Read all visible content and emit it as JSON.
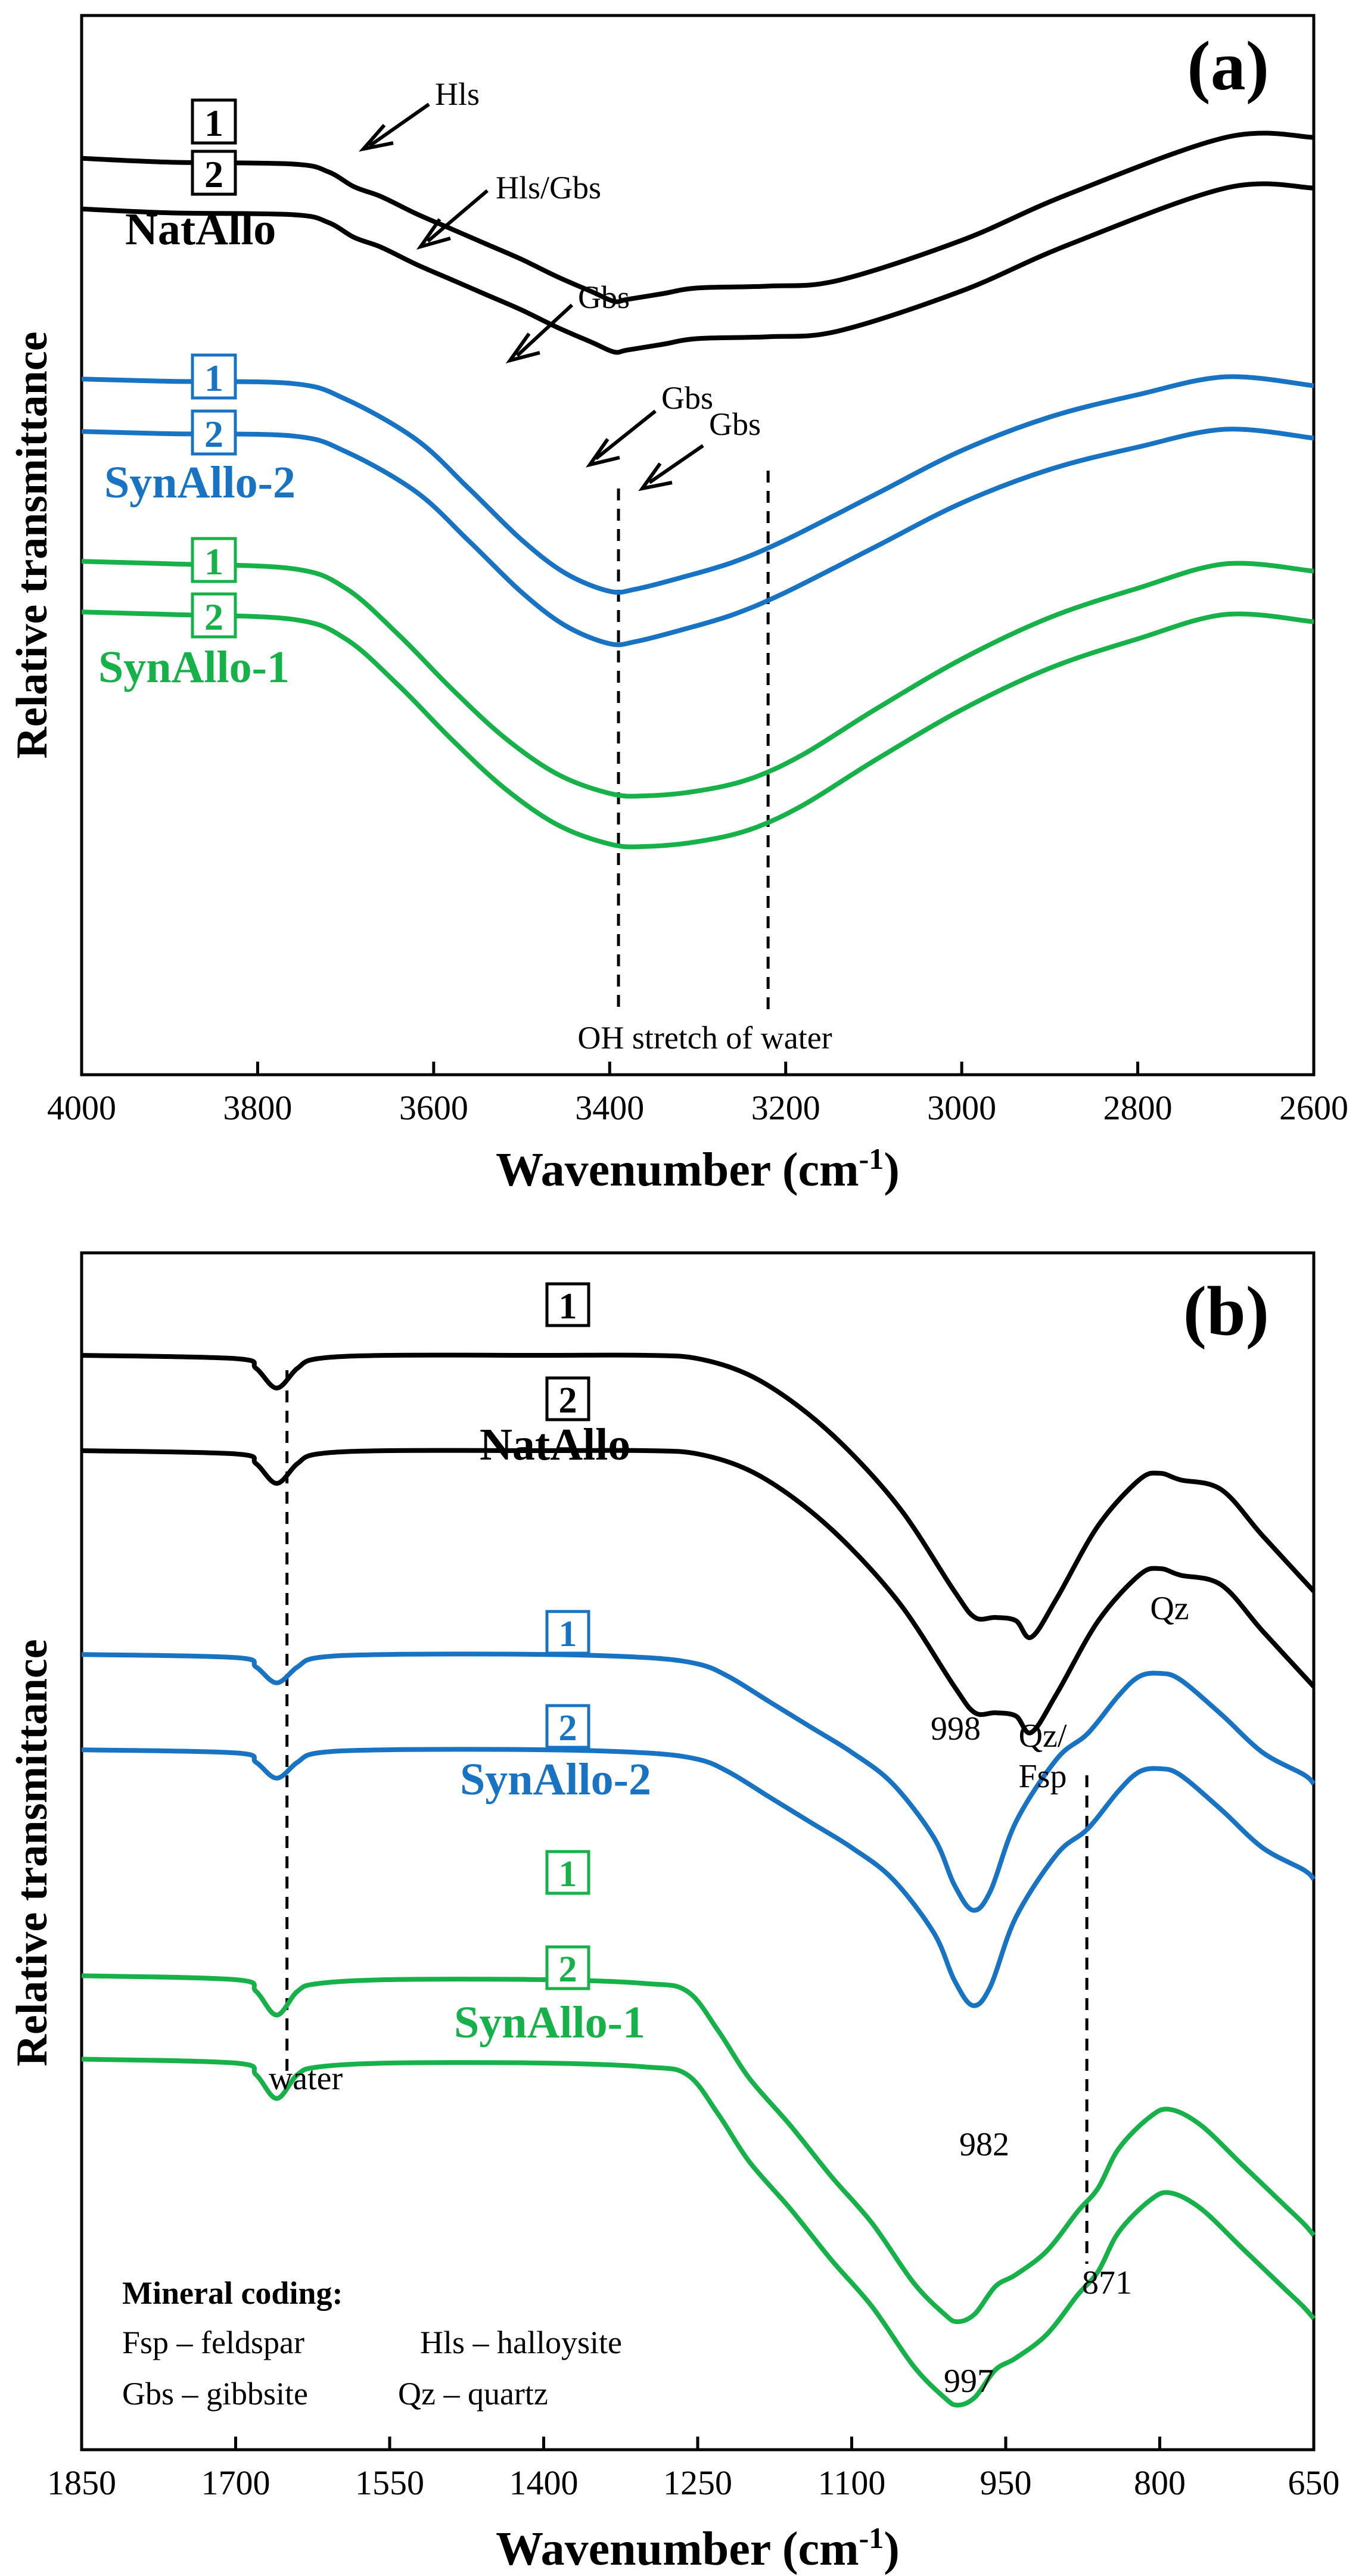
{
  "colors": {
    "black": "#000000",
    "blue": "#1874c2",
    "green": "#17b14a"
  },
  "chart_data": [
    {
      "type": "line",
      "panel_label": "(a)",
      "xlabel": "Wavenumber (cm",
      "xlabel_sup": "-1",
      "xlabel_close": ")",
      "ylabel": "Relative transmittance",
      "xlim": [
        4000,
        2600
      ],
      "x_reversed": true,
      "ticks": [
        "4000",
        "3800",
        "3600",
        "3400",
        "3200",
        "3000",
        "2800",
        "2600"
      ],
      "tick_values": [
        4000,
        3800,
        3600,
        3400,
        3200,
        3000,
        2800,
        2600
      ],
      "groups": [
        {
          "name": "NatAllo",
          "color": "black"
        },
        {
          "name": "SynAllo-2",
          "color": "blue"
        },
        {
          "name": "SynAllo-1",
          "color": "green"
        }
      ],
      "series": [
        {
          "name": "NatAllo 1",
          "badge": "1",
          "color": "black",
          "x": [
            4000,
            3900,
            3760,
            3720,
            3690,
            3660,
            3620,
            3580,
            3540,
            3500,
            3460,
            3420,
            3395,
            3380,
            3340,
            3300,
            3220,
            3140,
            3000,
            2880,
            2700,
            2600
          ],
          "y": [
            0.81,
            0.79,
            0.78,
            0.74,
            0.66,
            0.61,
            0.52,
            0.44,
            0.36,
            0.28,
            0.19,
            0.11,
            0.06,
            0.07,
            0.1,
            0.13,
            0.14,
            0.17,
            0.38,
            0.62,
            0.92,
            0.92
          ]
        },
        {
          "name": "NatAllo 2",
          "badge": "2",
          "color": "black",
          "x": [
            4000,
            3900,
            3760,
            3720,
            3690,
            3660,
            3620,
            3580,
            3540,
            3500,
            3460,
            3420,
            3395,
            3380,
            3340,
            3300,
            3220,
            3140,
            3000,
            2880,
            2700,
            2600
          ],
          "y": [
            0.81,
            0.79,
            0.78,
            0.74,
            0.66,
            0.61,
            0.52,
            0.44,
            0.36,
            0.28,
            0.19,
            0.11,
            0.06,
            0.07,
            0.1,
            0.13,
            0.14,
            0.17,
            0.38,
            0.62,
            0.92,
            0.92
          ]
        },
        {
          "name": "SynAllo-2 1",
          "badge": "1",
          "color": "blue",
          "x": [
            4000,
            3900,
            3760,
            3700,
            3620,
            3560,
            3500,
            3450,
            3400,
            3370,
            3320,
            3260,
            3200,
            3100,
            3000,
            2900,
            2800,
            2700,
            2600
          ],
          "y": [
            0.97,
            0.96,
            0.95,
            0.88,
            0.7,
            0.48,
            0.25,
            0.1,
            0.02,
            0.03,
            0.08,
            0.15,
            0.25,
            0.45,
            0.65,
            0.8,
            0.9,
            0.98,
            0.94
          ]
        },
        {
          "name": "SynAllo-2 2",
          "badge": "2",
          "color": "blue",
          "x": [
            4000,
            3900,
            3760,
            3700,
            3620,
            3560,
            3500,
            3450,
            3400,
            3370,
            3320,
            3260,
            3200,
            3100,
            3000,
            2900,
            2800,
            2700,
            2600
          ],
          "y": [
            0.97,
            0.96,
            0.95,
            0.88,
            0.7,
            0.48,
            0.25,
            0.1,
            0.02,
            0.03,
            0.08,
            0.15,
            0.25,
            0.45,
            0.65,
            0.8,
            0.9,
            0.98,
            0.94
          ]
        },
        {
          "name": "SynAllo-1 1",
          "badge": "1",
          "color": "green",
          "x": [
            4000,
            3900,
            3760,
            3700,
            3640,
            3580,
            3520,
            3460,
            3400,
            3360,
            3300,
            3240,
            3180,
            3100,
            3000,
            2900,
            2800,
            2700,
            2600
          ],
          "y": [
            0.97,
            0.96,
            0.94,
            0.86,
            0.67,
            0.45,
            0.25,
            0.1,
            0.02,
            0.01,
            0.03,
            0.08,
            0.18,
            0.36,
            0.57,
            0.74,
            0.86,
            0.96,
            0.93
          ]
        },
        {
          "name": "SynAllo-1 2",
          "badge": "2",
          "color": "green",
          "x": [
            4000,
            3900,
            3760,
            3700,
            3640,
            3580,
            3520,
            3460,
            3400,
            3360,
            3300,
            3240,
            3180,
            3100,
            3000,
            2900,
            2800,
            2700,
            2600
          ],
          "y": [
            0.97,
            0.96,
            0.94,
            0.86,
            0.67,
            0.45,
            0.25,
            0.1,
            0.02,
            0.01,
            0.03,
            0.08,
            0.18,
            0.36,
            0.57,
            0.74,
            0.86,
            0.96,
            0.93
          ]
        }
      ],
      "annotations": [
        {
          "text": "Hls",
          "at": 3690
        },
        {
          "text": "Hls/Gbs",
          "at": 3620
        },
        {
          "text": "Gbs",
          "at": 3520
        },
        {
          "text": "Gbs",
          "at": 3420
        },
        {
          "text": "Gbs",
          "at": 3395
        }
      ],
      "reference_lines": [
        3390,
        3220
      ],
      "reference_label": "OH stretch of water"
    },
    {
      "type": "line",
      "panel_label": "(b)",
      "xlabel": "Wavenumber (cm",
      "xlabel_sup": "-1",
      "xlabel_close": ")",
      "ylabel": "Relative transmittance",
      "xlim": [
        1850,
        650
      ],
      "x_reversed": true,
      "ticks": [
        "1850",
        "1700",
        "1550",
        "1400",
        "1250",
        "1100",
        "950",
        "800",
        "650"
      ],
      "tick_values": [
        1850,
        1700,
        1550,
        1400,
        1250,
        1100,
        950,
        800,
        650
      ],
      "groups": [
        {
          "name": "NatAllo",
          "color": "black"
        },
        {
          "name": "SynAllo-2",
          "color": "blue"
        },
        {
          "name": "SynAllo-1",
          "color": "green"
        }
      ],
      "series": [
        {
          "name": "NatAllo 1",
          "badge": "1",
          "color": "black",
          "x": [
            1850,
            1700,
            1680,
            1660,
            1640,
            1620,
            1550,
            1400,
            1300,
            1250,
            1200,
            1150,
            1100,
            1050,
            1000,
            980,
            960,
            940,
            925,
            900,
            860,
            820,
            800,
            780,
            740,
            700,
            650
          ],
          "y": [
            0.9,
            0.89,
            0.86,
            0.8,
            0.86,
            0.89,
            0.9,
            0.9,
            0.9,
            0.89,
            0.84,
            0.74,
            0.6,
            0.42,
            0.18,
            0.1,
            0.1,
            0.09,
            0.04,
            0.16,
            0.38,
            0.52,
            0.54,
            0.52,
            0.49,
            0.35,
            0.18
          ]
        },
        {
          "name": "NatAllo 2",
          "badge": "2",
          "color": "black",
          "x": [
            1850,
            1700,
            1680,
            1660,
            1640,
            1620,
            1550,
            1400,
            1300,
            1250,
            1200,
            1150,
            1100,
            1050,
            1000,
            980,
            960,
            940,
            925,
            900,
            860,
            820,
            800,
            780,
            740,
            700,
            650
          ],
          "y": [
            0.9,
            0.89,
            0.86,
            0.8,
            0.86,
            0.89,
            0.9,
            0.9,
            0.9,
            0.89,
            0.84,
            0.74,
            0.6,
            0.42,
            0.18,
            0.1,
            0.1,
            0.09,
            0.04,
            0.16,
            0.38,
            0.52,
            0.54,
            0.52,
            0.49,
            0.35,
            0.18
          ]
        },
        {
          "name": "SynAllo-2 1",
          "badge": "1",
          "color": "blue",
          "x": [
            1850,
            1700,
            1680,
            1660,
            1640,
            1620,
            1550,
            1400,
            1300,
            1250,
            1220,
            1180,
            1140,
            1100,
            1060,
            1020,
            1000,
            982,
            965,
            940,
            900,
            870,
            840,
            820,
            800,
            780,
            740,
            700,
            660,
            650
          ],
          "y": [
            0.93,
            0.92,
            0.89,
            0.84,
            0.89,
            0.92,
            0.93,
            0.93,
            0.92,
            0.9,
            0.86,
            0.78,
            0.7,
            0.62,
            0.52,
            0.35,
            0.2,
            0.12,
            0.18,
            0.4,
            0.6,
            0.68,
            0.8,
            0.86,
            0.87,
            0.85,
            0.74,
            0.62,
            0.55,
            0.52
          ]
        },
        {
          "name": "SynAllo-2 2",
          "badge": "2",
          "color": "blue",
          "x": [
            1850,
            1700,
            1680,
            1660,
            1640,
            1620,
            1550,
            1400,
            1300,
            1250,
            1220,
            1180,
            1140,
            1100,
            1060,
            1020,
            1000,
            982,
            965,
            940,
            900,
            870,
            840,
            820,
            800,
            780,
            740,
            700,
            660,
            650
          ],
          "y": [
            0.93,
            0.92,
            0.89,
            0.84,
            0.89,
            0.92,
            0.93,
            0.93,
            0.92,
            0.9,
            0.86,
            0.78,
            0.7,
            0.62,
            0.52,
            0.35,
            0.2,
            0.12,
            0.18,
            0.4,
            0.6,
            0.68,
            0.8,
            0.86,
            0.87,
            0.85,
            0.74,
            0.62,
            0.55,
            0.52
          ]
        },
        {
          "name": "SynAllo-1 1",
          "badge": "1",
          "color": "green",
          "x": [
            1850,
            1700,
            1680,
            1660,
            1640,
            1620,
            1550,
            1400,
            1300,
            1260,
            1230,
            1200,
            1160,
            1120,
            1080,
            1040,
            1010,
            997,
            980,
            960,
            940,
            910,
            880,
            860,
            840,
            810,
            790,
            760,
            720,
            680,
            660,
            650
          ],
          "y": [
            0.96,
            0.95,
            0.92,
            0.86,
            0.92,
            0.94,
            0.95,
            0.95,
            0.94,
            0.92,
            0.82,
            0.7,
            0.58,
            0.45,
            0.33,
            0.18,
            0.1,
            0.08,
            0.1,
            0.17,
            0.2,
            0.26,
            0.36,
            0.42,
            0.52,
            0.6,
            0.62,
            0.58,
            0.48,
            0.38,
            0.33,
            0.3
          ]
        },
        {
          "name": "SynAllo-1 2",
          "badge": "2",
          "color": "green",
          "x": [
            1850,
            1700,
            1680,
            1660,
            1640,
            1620,
            1550,
            1400,
            1300,
            1260,
            1230,
            1200,
            1160,
            1120,
            1080,
            1040,
            1010,
            997,
            980,
            960,
            940,
            910,
            880,
            860,
            840,
            810,
            790,
            760,
            720,
            680,
            660,
            650
          ],
          "y": [
            0.96,
            0.95,
            0.92,
            0.86,
            0.92,
            0.94,
            0.95,
            0.95,
            0.94,
            0.92,
            0.82,
            0.7,
            0.58,
            0.45,
            0.33,
            0.18,
            0.1,
            0.08,
            0.1,
            0.17,
            0.2,
            0.26,
            0.36,
            0.42,
            0.52,
            0.6,
            0.62,
            0.58,
            0.48,
            0.38,
            0.33,
            0.3
          ]
        }
      ],
      "annotations": [
        {
          "text": "water"
        },
        {
          "text": "998"
        },
        {
          "text": "Qz/"
        },
        {
          "text": "Fsp"
        },
        {
          "text": "Qz"
        },
        {
          "text": "982"
        },
        {
          "text": "871"
        },
        {
          "text": "997"
        }
      ],
      "reference_lines": [
        1650,
        871
      ],
      "legend": {
        "title": "Mineral coding:",
        "rows": [
          [
            "Fsp – feldspar",
            "Hls – halloysite"
          ],
          [
            "Gbs – gibbsite",
            "Qz – quartz"
          ]
        ]
      }
    }
  ]
}
